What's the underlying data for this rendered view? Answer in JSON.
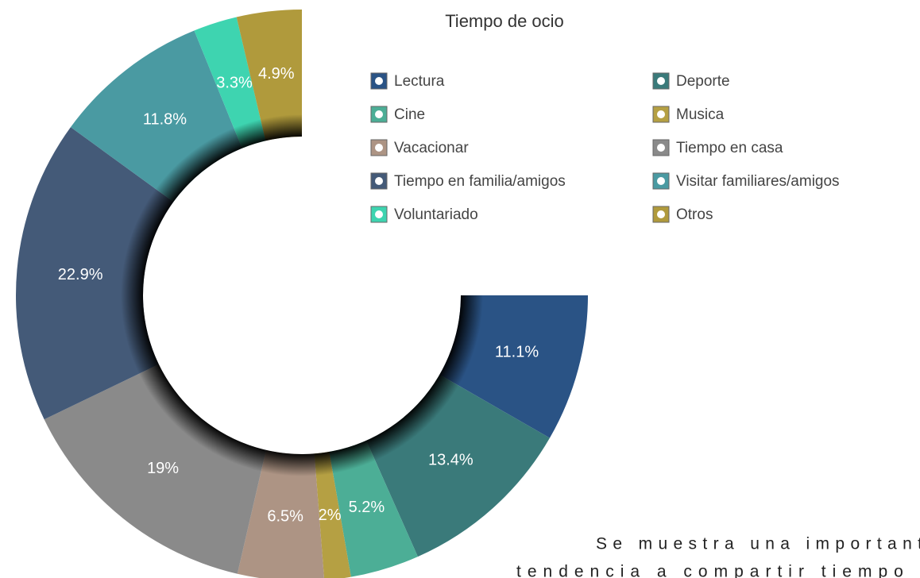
{
  "chart_data": {
    "type": "donut",
    "title": "Tiempo de ocio",
    "categories": [
      "Lectura",
      "Deporte",
      "Cine",
      "Musica",
      "Vacacionar",
      "Tiempo en casa",
      "Tiempo en familia/amigos",
      "Visitar familiares/amigos",
      "Voluntariado",
      "Otros"
    ],
    "values": [
      11.1,
      13.4,
      5.2,
      2,
      6.5,
      19,
      22.9,
      11.8,
      3.3,
      4.9
    ],
    "value_labels": [
      "11.1%",
      "13.4%",
      "5.2%",
      "2%",
      "6.5%",
      "19%",
      "22.9%",
      "11.8%",
      "3.3%",
      "4.9%"
    ],
    "colors": [
      "#2a5385",
      "#3a7a7a",
      "#4cae96",
      "#b5a043",
      "#ad9484",
      "#8a8a8a",
      "#445a78",
      "#4a9aa2",
      "#3ed4b0",
      "#b09a3c"
    ]
  },
  "paragraph": [
    "Se muestra una importante",
    "tendencia a compartir tiempo en"
  ]
}
